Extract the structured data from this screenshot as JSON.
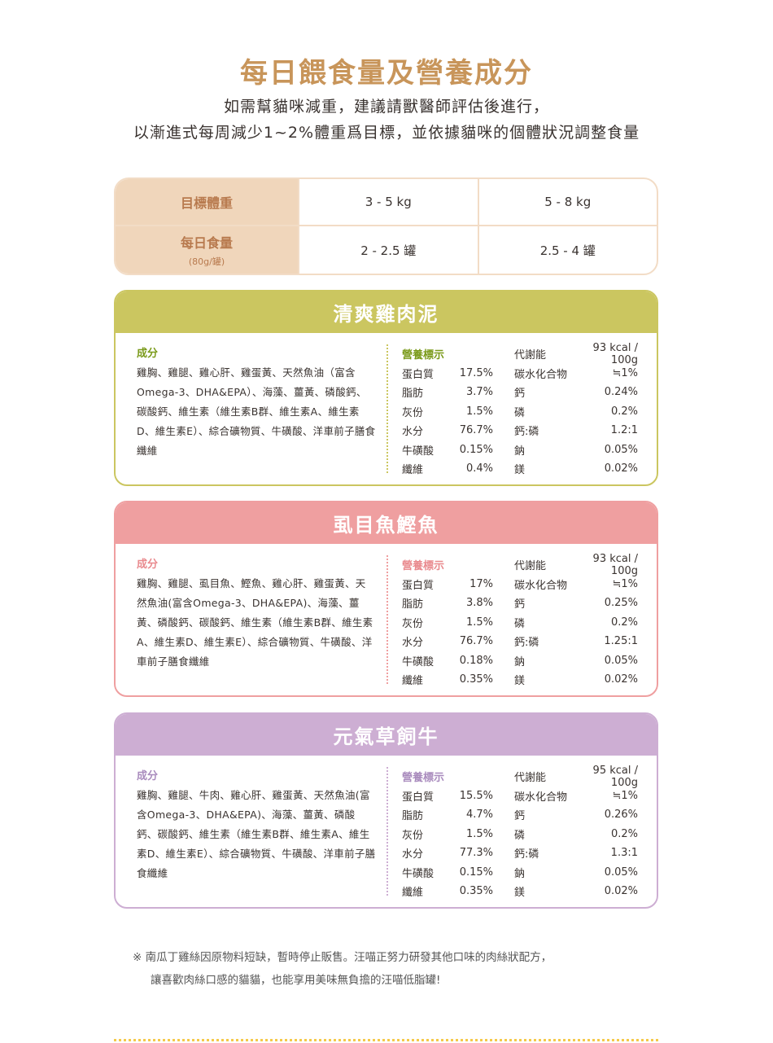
{
  "title": "每日餵食量及營養成分",
  "subtitle_lines": [
    "如需幫貓咪減重，建議請獸醫師評估後進行，",
    "以漸進式每周減少1~2%體重爲目標，並依據貓咪的個體狀況調整食量"
  ],
  "feeding_table": {
    "row1": {
      "header": "目標體重",
      "values": [
        "3 - 5 kg",
        "5 - 8 kg"
      ]
    },
    "row2": {
      "header": "每日食量",
      "note": "(80g/罐)",
      "values": [
        "2 - 2.5 罐",
        "2.5 - 4 罐"
      ]
    }
  },
  "colors": {
    "title": "#c8955a",
    "table_header": "#f0d6bb",
    "green": "#cbc660",
    "pink": "#ef9fa0",
    "purple": "#cdaed3"
  },
  "products": [
    {
      "name": "清爽雞肉泥",
      "ingredients_label": "成分",
      "ingredients": "雞胸、雞腿、雞心肝、雞蛋黃、天然魚油（富含Omega-3、DHA&EPA）、海藻、薑黃、磷酸鈣、碳酸鈣、維生素（維生素B群、維生素A、維生素D、維生素E）、綜合礦物質、牛磺酸、洋車前子膳食纖維",
      "nutrition_label": "營養標示",
      "energy_label": "代謝能",
      "energy": "93 kcal / 100g",
      "rows": [
        [
          "蛋白質",
          "17.5%",
          "碳水化合物",
          "≒1%"
        ],
        [
          "脂肪",
          "3.7%",
          "鈣",
          "0.24%"
        ],
        [
          "灰份",
          "1.5%",
          "磷",
          "0.2%"
        ],
        [
          "水分",
          "76.7%",
          "鈣:磷",
          "1.2:1"
        ],
        [
          "牛磺酸",
          "0.15%",
          "鈉",
          "0.05%"
        ],
        [
          "纖維",
          "0.4%",
          "鎂",
          "0.02%"
        ]
      ]
    },
    {
      "name": "虱目魚鰹魚",
      "ingredients_label": "成分",
      "ingredients": "雞胸、雞腿、虱目魚、鰹魚、雞心肝、雞蛋黃、天然魚油(富含Omega-3、DHA&EPA)、海藻、薑黃、磷酸鈣、碳酸鈣、維生素（維生素B群、維生素A、維生素D、維生素E）、綜合礦物質、牛磺酸、洋車前子膳食纖維",
      "nutrition_label": "營養標示",
      "energy_label": "代謝能",
      "energy": "93 kcal / 100g",
      "rows": [
        [
          "蛋白質",
          "17%",
          "碳水化合物",
          "≒1%"
        ],
        [
          "脂肪",
          "3.8%",
          "鈣",
          "0.25%"
        ],
        [
          "灰份",
          "1.5%",
          "磷",
          "0.2%"
        ],
        [
          "水分",
          "76.7%",
          "鈣:磷",
          "1.25:1"
        ],
        [
          "牛磺酸",
          "0.18%",
          "鈉",
          "0.05%"
        ],
        [
          "纖維",
          "0.35%",
          "鎂",
          "0.02%"
        ]
      ]
    },
    {
      "name": "元氣草飼牛",
      "ingredients_label": "成分",
      "ingredients": "雞胸、雞腿、牛肉、雞心肝、雞蛋黃、天然魚油(富含Omega-3、DHA&EPA)、海藻、薑黃、磷酸鈣、碳酸鈣、維生素（維生素B群、維生素A、維生素D、維生素E）、綜合礦物質、牛磺酸、洋車前子膳食纖維",
      "nutrition_label": "營養標示",
      "energy_label": "代謝能",
      "energy": "95 kcal / 100g",
      "rows": [
        [
          "蛋白質",
          "15.5%",
          "碳水化合物",
          "≒1%"
        ],
        [
          "脂肪",
          "4.7%",
          "鈣",
          "0.26%"
        ],
        [
          "灰份",
          "1.5%",
          "磷",
          "0.2%"
        ],
        [
          "水分",
          "77.3%",
          "鈣:磷",
          "1.3:1"
        ],
        [
          "牛磺酸",
          "0.15%",
          "鈉",
          "0.05%"
        ],
        [
          "纖維",
          "0.35%",
          "鎂",
          "0.02%"
        ]
      ]
    }
  ],
  "note_lines": [
    "※ 南瓜丁雞絲因原物料短缺，暫時停止販售。汪喵正努力研發其他口味的肉絲狀配方，",
    "讓喜歡肉絲口感的貓貓，也能享用美味無負擔的汪喵低脂罐!"
  ]
}
